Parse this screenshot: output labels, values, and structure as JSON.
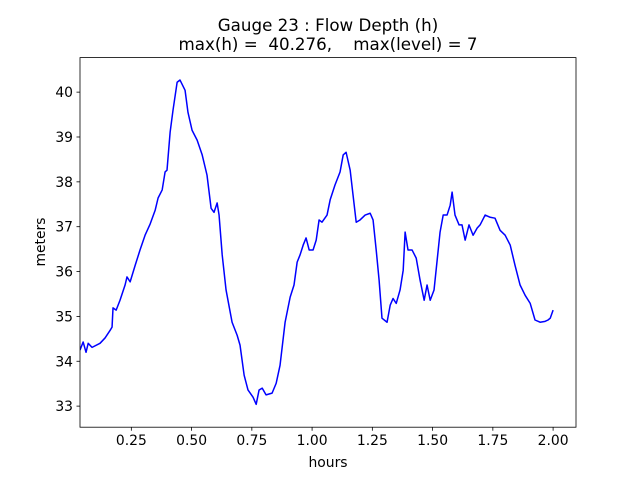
{
  "chart_data": {
    "type": "line",
    "title": "Gauge 23 : Flow Depth (h)",
    "subtitle": "max(h) =  40.276,    max(level) = 7",
    "x_label": "hours",
    "y_label": "meters",
    "color": "#0000ff",
    "grid": false,
    "xlim": [
      0.037,
      2.095
    ],
    "ylim": [
      32.53,
      40.77
    ],
    "xticks": [
      0.25,
      {
        "value": 0.5,
        "label": "0.50"
      },
      0.75,
      {
        "value": 1,
        "label": "1.00"
      },
      1.25,
      {
        "value": 1.5,
        "label": "1.50"
      },
      1.75,
      {
        "value": 2,
        "label": "2.00"
      }
    ],
    "yticks": [
      33,
      34,
      35,
      36,
      37,
      38,
      39,
      40
    ],
    "x": [
      0.037,
      0.05,
      0.062,
      0.071,
      0.087,
      0.12,
      0.141,
      0.162,
      0.17,
      0.174,
      0.187,
      0.203,
      0.224,
      0.232,
      0.245,
      0.266,
      0.286,
      0.307,
      0.328,
      0.349,
      0.361,
      0.378,
      0.39,
      0.398,
      0.411,
      0.423,
      0.44,
      0.452,
      0.473,
      0.485,
      0.502,
      0.523,
      0.544,
      0.564,
      0.581,
      0.593,
      0.606,
      0.614,
      0.627,
      0.643,
      0.668,
      0.689,
      0.701,
      0.718,
      0.734,
      0.755,
      0.768,
      0.78,
      0.793,
      0.809,
      0.834,
      0.851,
      0.867,
      0.888,
      0.909,
      0.925,
      0.938,
      0.95,
      0.963,
      0.975,
      0.988,
      1.004,
      1.017,
      1.029,
      1.041,
      1.062,
      1.075,
      1.095,
      1.116,
      1.129,
      1.141,
      1.158,
      1.17,
      1.183,
      1.199,
      1.22,
      1.241,
      1.253,
      1.266,
      1.278,
      1.29,
      1.311,
      1.324,
      1.336,
      1.349,
      1.365,
      1.378,
      1.386,
      1.398,
      1.415,
      1.432,
      1.448,
      1.465,
      1.477,
      1.49,
      1.506,
      1.519,
      1.531,
      1.544,
      1.56,
      1.573,
      1.581,
      1.593,
      1.61,
      1.622,
      1.635,
      1.651,
      1.668,
      1.685,
      1.697,
      1.718,
      1.739,
      1.759,
      1.78,
      1.801,
      1.822,
      1.842,
      1.863,
      1.884,
      1.905,
      1.925,
      1.946,
      1.967,
      1.979,
      1.988,
      2.0
    ],
    "values": [
      34.25,
      34.43,
      34.2,
      34.4,
      34.31,
      34.4,
      34.52,
      34.69,
      34.76,
      35.19,
      35.14,
      35.36,
      35.7,
      35.88,
      35.77,
      36.14,
      36.48,
      36.81,
      37.06,
      37.37,
      37.64,
      37.82,
      38.22,
      38.26,
      39.11,
      39.6,
      40.22,
      40.27,
      40.04,
      39.55,
      39.15,
      38.93,
      38.6,
      38.15,
      37.41,
      37.32,
      37.53,
      37.26,
      36.37,
      35.59,
      34.87,
      34.58,
      34.36,
      33.69,
      33.36,
      33.2,
      33.04,
      33.36,
      33.4,
      33.25,
      33.29,
      33.51,
      33.91,
      34.87,
      35.43,
      35.7,
      36.21,
      36.37,
      36.59,
      36.75,
      36.48,
      36.48,
      36.7,
      37.15,
      37.1,
      37.26,
      37.6,
      37.93,
      38.22,
      38.6,
      38.66,
      38.26,
      37.7,
      37.1,
      37.15,
      37.26,
      37.3,
      37.15,
      36.48,
      35.81,
      34.96,
      34.87,
      35.25,
      35.4,
      35.29,
      35.59,
      36.03,
      36.88,
      36.48,
      36.48,
      36.3,
      35.81,
      35.36,
      35.7,
      35.36,
      35.59,
      36.26,
      36.88,
      37.26,
      37.26,
      37.48,
      37.77,
      37.26,
      37.04,
      37.04,
      36.7,
      37.04,
      36.81,
      36.97,
      37.04,
      37.26,
      37.21,
      37.19,
      36.92,
      36.81,
      36.59,
      36.14,
      35.7,
      35.47,
      35.29,
      34.92,
      34.87,
      34.89,
      34.92,
      34.96,
      35.14
    ]
  }
}
